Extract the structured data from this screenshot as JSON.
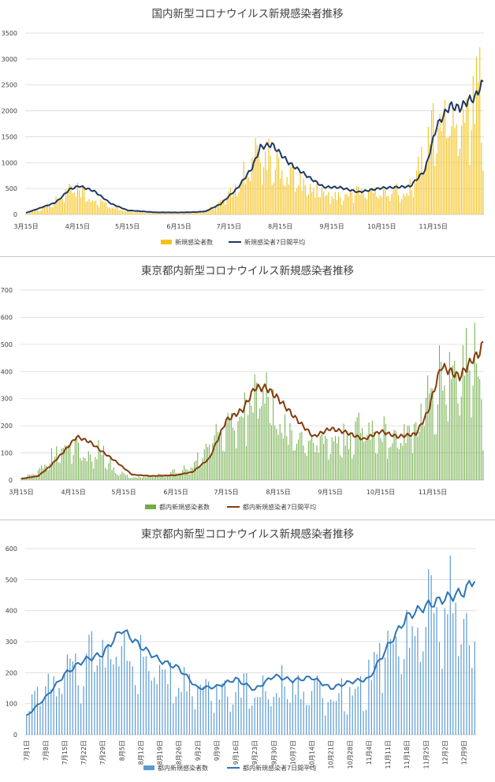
{
  "chart_data": [
    {
      "type": "bar",
      "title": "国内新型コロナウイルス新規感染者推移",
      "ylim": [
        0,
        3500
      ],
      "yticks": [
        0,
        500,
        1000,
        1500,
        2000,
        2500,
        3000,
        3500
      ],
      "grid": true,
      "legend_position": "bottom",
      "x_range": [
        "3/15",
        "12/15"
      ],
      "xtick_labels": [
        "3月15日",
        "4月15日",
        "5月15日",
        "6月15日",
        "7月15日",
        "8月15日",
        "9月15日",
        "10月15日",
        "11月15日"
      ],
      "x": [
        "3/15",
        "4/1",
        "4/4",
        "4/10",
        "4/16",
        "4/25",
        "5/5",
        "5/15",
        "6/1",
        "6/15",
        "6/25",
        "7/1",
        "7/10",
        "7/20",
        "7/29",
        "8/3",
        "8/10",
        "8/20",
        "9/1",
        "9/10",
        "9/20",
        "10/1",
        "10/15",
        "11/1",
        "11/10",
        "11/17",
        "11/25",
        "12/1",
        "12/6",
        "12/10",
        "12/13",
        "12/15"
      ],
      "series": [
        {
          "name": "新規感染者数",
          "color": "#f5c118",
          "values": [
            30,
            290,
            380,
            650,
            560,
            370,
            200,
            85,
            45,
            40,
            55,
            90,
            300,
            700,
            1300,
            1550,
            1250,
            950,
            620,
            520,
            470,
            560,
            520,
            650,
            1500,
            2300,
            2450,
            2350,
            2600,
            2950,
            3050,
            1650
          ]
        },
        {
          "name": "新規感染者7日間平均",
          "color": "#1f3864",
          "values": [
            30,
            220,
            290,
            480,
            550,
            450,
            210,
            80,
            40,
            38,
            45,
            60,
            200,
            500,
            900,
            1300,
            1350,
            1000,
            720,
            530,
            520,
            430,
            510,
            540,
            850,
            1700,
            2100,
            2050,
            2200,
            2250,
            2450,
            2540
          ]
        }
      ]
    },
    {
      "type": "bar",
      "title": "東京都内新型コロナウイルス新規感染者推移",
      "ylim": [
        0,
        700
      ],
      "yticks": [
        0,
        100,
        200,
        300,
        400,
        500,
        600,
        700
      ],
      "grid": true,
      "legend_position": "bottom",
      "x_range": [
        "3/15",
        "12/15"
      ],
      "xtick_labels": [
        "3月15日",
        "4月15日",
        "5月15日",
        "6月15日",
        "7月15日",
        "8月15日",
        "9月15日",
        "10月15日",
        "11月15日"
      ],
      "x": [
        "3/15",
        "3/25",
        "4/1",
        "4/10",
        "4/17",
        "4/25",
        "5/1",
        "5/10",
        "5/20",
        "6/1",
        "6/15",
        "6/25",
        "7/5",
        "7/15",
        "7/25",
        "8/1",
        "8/8",
        "8/15",
        "8/25",
        "9/5",
        "9/15",
        "9/25",
        "10/5",
        "10/15",
        "10/25",
        "11/5",
        "11/12",
        "11/20",
        "12/1",
        "12/8",
        "12/13",
        "12/15"
      ],
      "series": [
        {
          "name": "都内新規感染者数",
          "color": "#70ad47",
          "values": [
            12,
            40,
            100,
            190,
            150,
            100,
            150,
            40,
            12,
            20,
            40,
            60,
            180,
            260,
            290,
            460,
            420,
            260,
            210,
            180,
            180,
            200,
            250,
            220,
            200,
            230,
            380,
            500,
            520,
            580,
            610,
            300
          ]
        },
        {
          "name": "都内新規感染者7日間平均",
          "color": "#843c0c",
          "values": [
            5,
            15,
            50,
            110,
            160,
            140,
            110,
            70,
            20,
            15,
            18,
            30,
            80,
            220,
            260,
            340,
            340,
            300,
            230,
            160,
            190,
            175,
            150,
            180,
            160,
            170,
            250,
            420,
            380,
            440,
            470,
            505
          ]
        }
      ]
    },
    {
      "type": "bar",
      "title": "東京都内新型コロナウイルス新規感染者推移",
      "ylim": [
        0,
        600
      ],
      "yticks": [
        0,
        100,
        200,
        300,
        400,
        500,
        600
      ],
      "grid": true,
      "legend_position": "bottom",
      "x_range": [
        "7/1",
        "12/13"
      ],
      "xtick_labels": [
        "7月1日",
        "7月8日",
        "7月15日",
        "7月22日",
        "7月29日",
        "8月5日",
        "8月12日",
        "8月19日",
        "8月26日",
        "9月2日",
        "9月9日",
        "9月16日",
        "9月23日",
        "9月30日",
        "10月7日",
        "10月14日",
        "10月21日",
        "10月28日",
        "11月4日",
        "11月11日",
        "11月18日",
        "11月25日",
        "12月2日",
        "12月9日"
      ],
      "x": [
        "7/1",
        "7/8",
        "7/15",
        "7/22",
        "7/29",
        "8/5",
        "8/12",
        "8/19",
        "8/26",
        "9/2",
        "9/9",
        "9/16",
        "9/23",
        "9/30",
        "10/7",
        "10/14",
        "10/21",
        "10/28",
        "11/4",
        "11/11",
        "11/18",
        "11/25",
        "12/2",
        "12/9",
        "12/13"
      ],
      "series": [
        {
          "name": "都内新規感染者数",
          "color": "#5b9bd5",
          "values": [
            110,
            180,
            230,
            270,
            380,
            390,
            300,
            260,
            210,
            170,
            160,
            180,
            190,
            200,
            210,
            200,
            150,
            180,
            220,
            400,
            500,
            520,
            500,
            590,
            310
          ]
        },
        {
          "name": "都内新規感染者7日間平均",
          "color": "#2e75b6",
          "values": [
            60,
            120,
            195,
            240,
            260,
            340,
            285,
            240,
            215,
            150,
            155,
            180,
            145,
            190,
            175,
            185,
            150,
            170,
            180,
            285,
            380,
            415,
            440,
            460,
            505
          ]
        }
      ]
    }
  ]
}
